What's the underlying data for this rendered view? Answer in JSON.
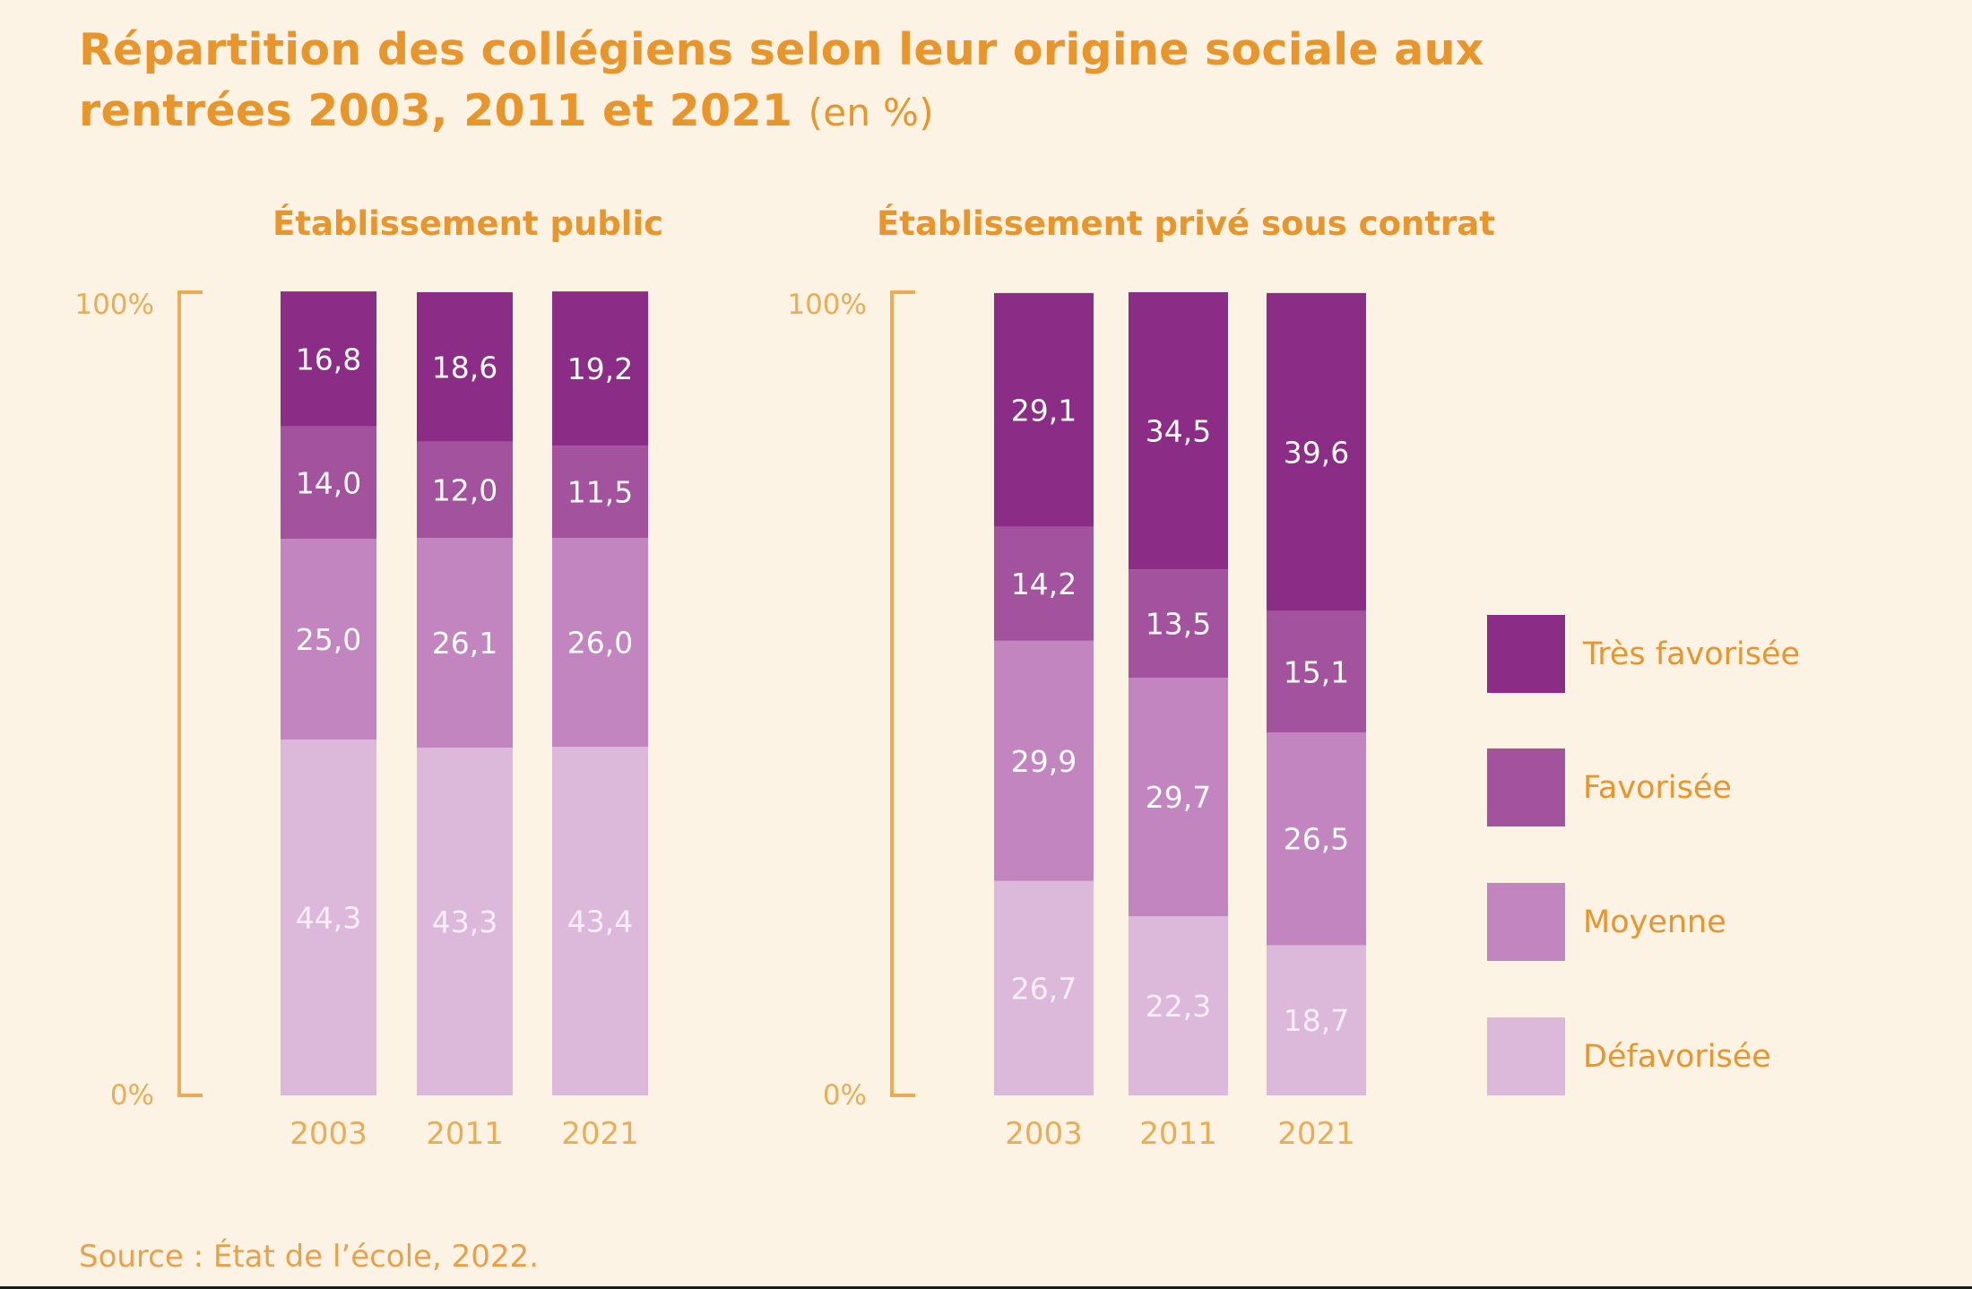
{
  "title": {
    "main": "Répartition des collégiens selon leur origine sociale aux rentrées 2003, 2011 et 2021",
    "unit": "(en %)"
  },
  "source": "Source : État de l’école, 2022.",
  "colors": {
    "text_accent": "#e8952c",
    "axis": "#e8ad55",
    "tres_favorisee": "#8b2d86",
    "favorisee": "#a3529e",
    "moyenne": "#c285bf",
    "defavorisee": "#dcb8da",
    "label_light": "#ffffff",
    "label_on_pale": "#f8eef7"
  },
  "chart_data": [
    {
      "type": "bar",
      "stacked": true,
      "title": "Établissement public",
      "categories": [
        "2003",
        "2011",
        "2021"
      ],
      "y_ticks": [
        "100%",
        "0%"
      ],
      "ylim": [
        0,
        100
      ],
      "series": [
        {
          "name": "Défavorisée",
          "values": [
            44.3,
            43.3,
            43.4
          ],
          "labels": [
            "44,3",
            "43,3",
            "43,4"
          ]
        },
        {
          "name": "Moyenne",
          "values": [
            25.0,
            26.1,
            26.0
          ],
          "labels": [
            "25,0",
            "26,1",
            "26,0"
          ]
        },
        {
          "name": "Favorisée",
          "values": [
            14.0,
            12.0,
            11.5
          ],
          "labels": [
            "14,0",
            "12,0",
            "11,5"
          ]
        },
        {
          "name": "Très favorisée",
          "values": [
            16.8,
            18.6,
            19.2
          ],
          "labels": [
            "16,8",
            "18,6",
            "19,2"
          ]
        }
      ]
    },
    {
      "type": "bar",
      "stacked": true,
      "title": "Établissement privé sous contrat",
      "categories": [
        "2003",
        "2011",
        "2021"
      ],
      "y_ticks": [
        "100%",
        "0%"
      ],
      "ylim": [
        0,
        100
      ],
      "series": [
        {
          "name": "Défavorisée",
          "values": [
            26.7,
            22.3,
            18.7
          ],
          "labels": [
            "26,7",
            "22,3",
            "18,7"
          ]
        },
        {
          "name": "Moyenne",
          "values": [
            29.9,
            29.7,
            26.5
          ],
          "labels": [
            "29,9",
            "29,7",
            "26,5"
          ]
        },
        {
          "name": "Favorisée",
          "values": [
            14.2,
            13.5,
            15.1
          ],
          "labels": [
            "14,2",
            "13,5",
            "15,1"
          ]
        },
        {
          "name": "Très favorisée",
          "values": [
            29.1,
            34.5,
            39.6
          ],
          "labels": [
            "29,1",
            "34,5",
            "39,6"
          ]
        }
      ]
    }
  ],
  "legend": [
    {
      "label": "Très favorisée",
      "color_key": "tres_favorisee"
    },
    {
      "label": "Favorisée",
      "color_key": "favorisee"
    },
    {
      "label": "Moyenne",
      "color_key": "moyenne"
    },
    {
      "label": "Défavorisée",
      "color_key": "defavorisee"
    }
  ]
}
